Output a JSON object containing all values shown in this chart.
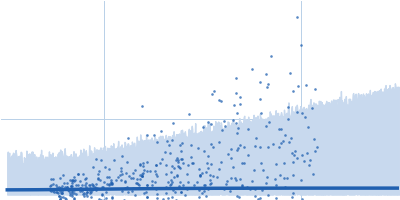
{
  "background_color": "#ffffff",
  "fig_width": 4.0,
  "fig_height": 2.0,
  "dpi": 100,
  "grid_color": "#b8d0e8",
  "grid_linewidth": 0.7,
  "band_color": "#c8d9ee",
  "band_alpha": 1.0,
  "curve_color": "#2060b0",
  "curve_linewidth": 2.5,
  "scatter_color": "#2060b0",
  "scatter_alpha": 0.75,
  "scatter_size": 3.5,
  "q_min": 0.001,
  "q_max": 0.36,
  "n_curve": 800,
  "n_scatter": 700,
  "xlim": [
    -0.005,
    0.36
  ],
  "ylim": [
    -0.01,
    0.2
  ],
  "grid_xticks": [
    0.09,
    0.27
  ],
  "grid_yticks": [
    0.075
  ]
}
